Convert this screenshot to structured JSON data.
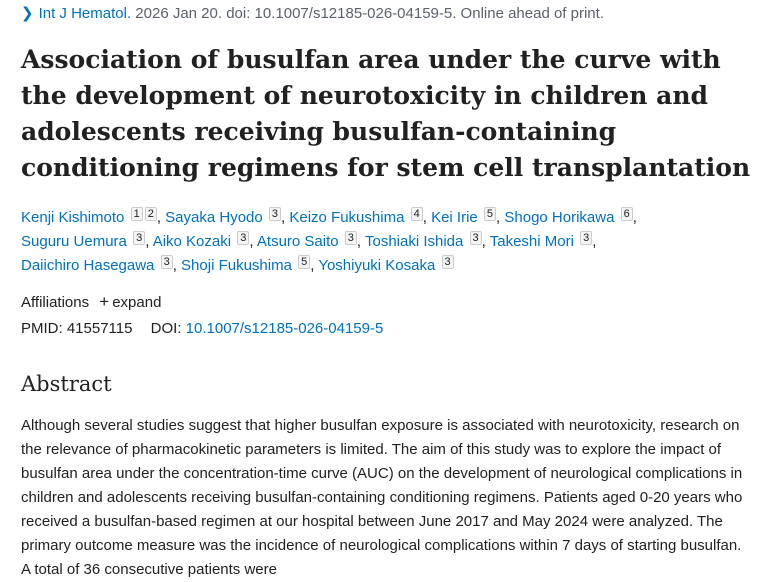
{
  "citation": {
    "journal": "Int J Hematol.",
    "details": "2026 Jan 20. doi: 10.1007/s12185-026-04159-5. Online ahead of print."
  },
  "title": "Association of busulfan area under the curve with the development of neurotoxicity in children and adolescents receiving busulfan-containing conditioning regimens for stem cell transplantation",
  "authors": [
    {
      "name": "Kenji Kishimoto",
      "affs": [
        "1",
        "2"
      ]
    },
    {
      "name": "Sayaka Hyodo",
      "affs": [
        "3"
      ]
    },
    {
      "name": "Keizo Fukushima",
      "affs": [
        "4"
      ]
    },
    {
      "name": "Kei Irie",
      "affs": [
        "5"
      ]
    },
    {
      "name": "Shogo Horikawa",
      "affs": [
        "6"
      ]
    },
    {
      "name": "Suguru Uemura",
      "affs": [
        "3"
      ]
    },
    {
      "name": "Aiko Kozaki",
      "affs": [
        "3"
      ]
    },
    {
      "name": "Atsuro Saito",
      "affs": [
        "3"
      ]
    },
    {
      "name": "Toshiaki Ishida",
      "affs": [
        "3"
      ]
    },
    {
      "name": "Takeshi Mori",
      "affs": [
        "3"
      ]
    },
    {
      "name": "Daiichiro Hasegawa",
      "affs": [
        "3"
      ]
    },
    {
      "name": "Shoji Fukushima",
      "affs": [
        "5"
      ]
    },
    {
      "name": "Yoshiyuki Kosaka",
      "affs": [
        "3"
      ]
    }
  ],
  "affiliations": {
    "label": "Affiliations",
    "expand_icon": "plus-icon",
    "expand_label": "expand"
  },
  "ids": {
    "pmid_label": "PMID:",
    "pmid": "41557115",
    "doi_label": "DOI:",
    "doi": "10.1007/s12185-026-04159-5"
  },
  "abstract": {
    "heading": "Abstract",
    "text": "Although several studies suggest that higher busulfan exposure is associated with neurotoxicity, research on the relevance of pharmacokinetic parameters is limited. The aim of this study was to explore the impact of busulfan area under the concentration-time curve (AUC) on the development of neurological complications in children and adolescents receiving busulfan-containing conditioning regimens. Patients aged 0-20 years who received a busulfan-based regimen at our hospital between June 2017 and May 2024 were analyzed. The primary outcome measure was the incidence of neurological complications within 7 days of starting busulfan. A total of 36 consecutive patients were"
  }
}
